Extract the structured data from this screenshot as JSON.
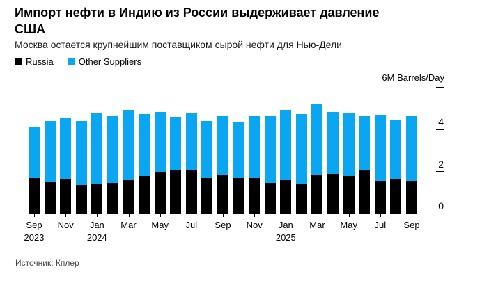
{
  "header": {
    "title_line1": "Импорт нефти в Индию из России выдерживает давление",
    "title_line2": "США",
    "subtitle": "Москва остается крупнейшим поставщиком сырой нефти для Нью-Дели"
  },
  "legend": [
    {
      "label": "Russia",
      "color": "#000000"
    },
    {
      "label": "Other Suppliers",
      "color": "#0aa6f2"
    }
  ],
  "axis": {
    "unit_label": "6M Barrels/Day",
    "y_ticks": [
      {
        "value": 6,
        "dash": true,
        "label": ""
      },
      {
        "value": 4,
        "dash": true,
        "label": "4"
      },
      {
        "value": 2,
        "dash": true,
        "label": "2"
      },
      {
        "value": 0,
        "dash": false,
        "label": "0"
      }
    ]
  },
  "source": "Источник: Кплер",
  "chart_data": {
    "type": "bar",
    "stacked": true,
    "title": "Импорт нефти в Индию из России выдерживает давление США",
    "subtitle": "Москва остается крупнейшим поставщиком сырой нефти для Нью-Дели",
    "ylabel": "M Barrels/Day",
    "ylim": [
      0,
      6
    ],
    "y_tick_values": [
      0,
      2,
      4,
      6
    ],
    "grid": false,
    "legend_position": "top-left",
    "axis_side": "right",
    "categories": [
      "Sep 2023",
      "Oct 2023",
      "Nov 2023",
      "Dec 2023",
      "Jan 2024",
      "Feb 2024",
      "Mar 2024",
      "Apr 2024",
      "May 2024",
      "Jun 2024",
      "Jul 2024",
      "Aug 2024",
      "Sep 2024",
      "Oct 2024",
      "Nov 2024",
      "Dec 2024",
      "Jan 2025",
      "Feb 2025",
      "Mar 2025",
      "Apr 2025",
      "May 2025",
      "Jun 2025",
      "Jul 2025",
      "Aug 2025",
      "Sep 2025"
    ],
    "series": [
      {
        "name": "Russia",
        "color": "#000000",
        "values": [
          1.7,
          1.5,
          1.65,
          1.35,
          1.4,
          1.45,
          1.6,
          1.8,
          1.95,
          2.05,
          2.05,
          1.7,
          1.85,
          1.7,
          1.7,
          1.45,
          1.6,
          1.4,
          1.85,
          1.9,
          1.8,
          2.05,
          1.55,
          1.65,
          1.55
        ]
      },
      {
        "name": "Other Suppliers",
        "color": "#0aa6f2",
        "values": [
          2.45,
          2.9,
          2.9,
          3.05,
          3.4,
          3.2,
          3.35,
          2.95,
          2.9,
          2.55,
          2.75,
          2.7,
          2.8,
          2.65,
          2.95,
          3.2,
          3.35,
          3.35,
          3.35,
          2.95,
          3.0,
          2.6,
          3.15,
          2.8,
          3.1
        ]
      }
    ],
    "x_tick_labels": [
      {
        "index": 0,
        "month": "Sep",
        "year": "2023"
      },
      {
        "index": 2,
        "month": "Nov",
        "year": ""
      },
      {
        "index": 4,
        "month": "Jan",
        "year": "2024"
      },
      {
        "index": 6,
        "month": "Mar",
        "year": ""
      },
      {
        "index": 8,
        "month": "May",
        "year": ""
      },
      {
        "index": 10,
        "month": "Jul",
        "year": ""
      },
      {
        "index": 12,
        "month": "Sep",
        "year": ""
      },
      {
        "index": 14,
        "month": "Nov",
        "year": ""
      },
      {
        "index": 16,
        "month": "Jan",
        "year": "2025"
      },
      {
        "index": 18,
        "month": "Mar",
        "year": ""
      },
      {
        "index": 20,
        "month": "May",
        "year": ""
      },
      {
        "index": 22,
        "month": "Jul",
        "year": ""
      },
      {
        "index": 24,
        "month": "Sep",
        "year": ""
      }
    ]
  }
}
